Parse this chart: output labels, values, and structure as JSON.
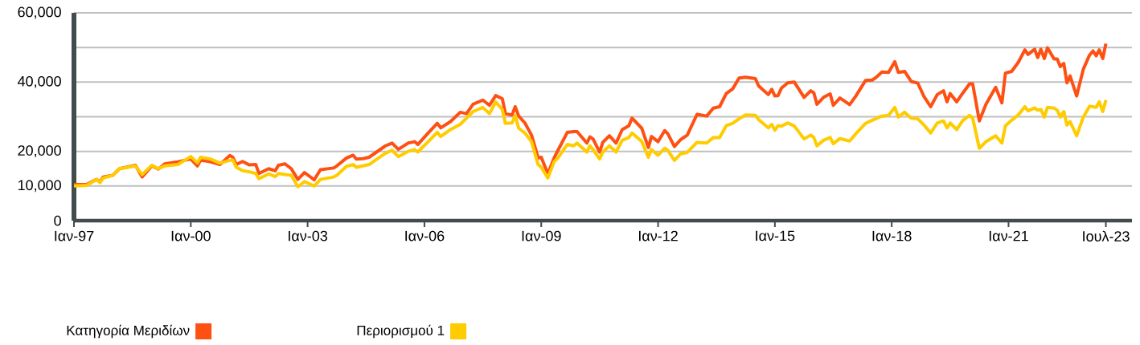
{
  "chart_data": {
    "type": "line",
    "x": [
      "1997-01",
      "1997-05",
      "1997-08",
      "1997-09",
      "1997-10",
      "1998-01",
      "1998-03",
      "1998-08",
      "1998-10",
      "1999-01",
      "1999-03",
      "1999-05",
      "1999-09",
      "2000-01",
      "2000-03",
      "2000-04",
      "2000-07",
      "2000-10",
      "2001-01",
      "2001-02",
      "2001-03",
      "2001-05",
      "2001-07",
      "2001-09",
      "2001-10",
      "2002-01",
      "2002-03",
      "2002-04",
      "2002-06",
      "2002-08",
      "2002-10",
      "2002-12",
      "2003-03",
      "2003-05",
      "2003-09",
      "2003-10",
      "2004-01",
      "2004-03",
      "2004-04",
      "2004-06",
      "2004-08",
      "2005-01",
      "2005-03",
      "2005-05",
      "2005-08",
      "2005-10",
      "2005-11",
      "2006-02",
      "2006-05",
      "2006-06",
      "2006-09",
      "2006-12",
      "2007-02",
      "2007-04",
      "2007-07",
      "2007-09",
      "2007-11",
      "2008-01",
      "2008-02",
      "2008-04",
      "2008-05",
      "2008-06",
      "2008-08",
      "2008-10",
      "2008-12",
      "2009-01",
      "2009-03",
      "2009-05",
      "2009-06",
      "2009-09",
      "2009-11",
      "2009-12",
      "2010-03",
      "2010-04",
      "2010-05",
      "2010-07",
      "2010-08",
      "2010-10",
      "2010-12",
      "2011-02",
      "2011-04",
      "2011-05",
      "2011-08",
      "2011-10",
      "2011-11",
      "2012-01",
      "2012-03",
      "2012-04",
      "2012-06",
      "2012-08",
      "2012-10",
      "2013-01",
      "2013-04",
      "2013-06",
      "2013-08",
      "2013-10",
      "2013-12",
      "2014-02",
      "2014-04",
      "2014-07",
      "2014-08",
      "2014-11",
      "2014-12",
      "2015-01",
      "2015-02",
      "2015-03",
      "2015-05",
      "2015-07",
      "2015-10",
      "2015-12",
      "2016-01",
      "2016-02",
      "2016-04",
      "2016-06",
      "2016-07",
      "2016-09",
      "2016-12",
      "2017-02",
      "2017-05",
      "2017-07",
      "2017-08",
      "2017-10",
      "2017-12",
      "2018-02",
      "2018-03",
      "2018-05",
      "2018-07",
      "2018-09",
      "2018-11",
      "2019-01",
      "2019-03",
      "2019-05",
      "2019-06",
      "2019-07",
      "2019-09",
      "2019-11",
      "2020-01",
      "2020-02",
      "2020-04",
      "2020-06",
      "2020-09",
      "2020-11",
      "2020-12",
      "2021-02",
      "2021-04",
      "2021-06",
      "2021-07",
      "2021-09",
      "2021-10",
      "2021-11",
      "2021-12",
      "2022-01",
      "2022-03",
      "2022-04",
      "2022-05",
      "2022-06",
      "2022-07",
      "2022-08",
      "2022-10",
      "2022-12",
      "2023-02",
      "2023-03",
      "2023-04",
      "2023-05",
      "2023-06",
      "2023-07"
    ],
    "series": [
      {
        "name": "Κατηγορία Μεριδίων",
        "color": "#ff5014",
        "values": [
          10400,
          10500,
          11900,
          11200,
          12600,
          13100,
          15000,
          16000,
          12600,
          15800,
          14900,
          16400,
          17000,
          17800,
          15800,
          17500,
          17000,
          16200,
          18800,
          18300,
          16200,
          17100,
          16100,
          16200,
          13600,
          15000,
          14400,
          16000,
          16400,
          15000,
          11900,
          13900,
          11800,
          14700,
          15200,
          15800,
          18100,
          18900,
          17800,
          17900,
          18300,
          21600,
          22400,
          20600,
          22400,
          22800,
          22000,
          25100,
          28100,
          26800,
          28600,
          31300,
          30900,
          33600,
          34800,
          33300,
          36100,
          35200,
          30900,
          30500,
          32900,
          30200,
          28200,
          24700,
          18100,
          18300,
          13500,
          18100,
          20100,
          25500,
          25700,
          25700,
          22400,
          24200,
          23600,
          19800,
          22600,
          24500,
          22400,
          26300,
          27400,
          29600,
          26700,
          21100,
          24300,
          22800,
          26000,
          25100,
          21400,
          23400,
          24700,
          30700,
          30200,
          32500,
          32900,
          36700,
          38100,
          41200,
          41400,
          41000,
          38900,
          36400,
          37900,
          36000,
          36100,
          38300,
          39800,
          40000,
          35600,
          37500,
          36900,
          33600,
          35600,
          36600,
          33300,
          35400,
          33500,
          36000,
          40500,
          40600,
          41200,
          42900,
          42800,
          45900,
          42800,
          43100,
          40200,
          39700,
          35800,
          32900,
          36400,
          37500,
          34300,
          36700,
          34300,
          36900,
          39500,
          39500,
          28800,
          33600,
          38500,
          34000,
          42600,
          43100,
          45700,
          49300,
          48000,
          49500,
          47100,
          49500,
          46800,
          49900,
          46700,
          46700,
          44500,
          45400,
          39800,
          41800,
          36000,
          43700,
          47800,
          49000,
          47600,
          49300,
          46800,
          51100
        ]
      },
      {
        "name": "Περιορισμού 1",
        "color": "#ffcc00",
        "values": [
          10000,
          10200,
          11900,
          11000,
          12300,
          13100,
          15000,
          15800,
          13300,
          16000,
          15000,
          15800,
          16200,
          18500,
          16700,
          18300,
          17800,
          16600,
          17400,
          17500,
          15400,
          14400,
          14100,
          13600,
          12100,
          13500,
          12700,
          13600,
          13300,
          13100,
          9800,
          11300,
          10000,
          11900,
          12600,
          13100,
          15700,
          16200,
          15400,
          15800,
          16200,
          19500,
          20300,
          18500,
          20000,
          20500,
          19800,
          22600,
          25500,
          24300,
          26300,
          27800,
          29600,
          31500,
          32700,
          30900,
          34300,
          32100,
          28100,
          28200,
          30400,
          26700,
          25300,
          22800,
          16200,
          15400,
          12300,
          17000,
          18000,
          22000,
          21600,
          22400,
          19800,
          21600,
          20500,
          17800,
          19800,
          21600,
          19800,
          23200,
          24000,
          25300,
          22900,
          18300,
          20500,
          18900,
          20900,
          20300,
          17400,
          19300,
          19700,
          22600,
          22400,
          24000,
          24000,
          27400,
          28100,
          29400,
          30500,
          30400,
          29200,
          26800,
          27800,
          26100,
          27400,
          27300,
          28200,
          27300,
          23600,
          24700,
          24000,
          21600,
          23200,
          24000,
          22200,
          23700,
          23000,
          25100,
          28100,
          29000,
          29400,
          30200,
          30400,
          32700,
          29900,
          31300,
          29600,
          29400,
          27600,
          25300,
          28200,
          28800,
          26800,
          28200,
          26300,
          29000,
          30400,
          29600,
          20900,
          22800,
          24500,
          22400,
          27400,
          29000,
          30500,
          32900,
          31700,
          32500,
          31900,
          32100,
          29900,
          32700,
          32500,
          31900,
          29900,
          31500,
          27600,
          28600,
          24500,
          29900,
          33000,
          32900,
          32700,
          34300,
          31500,
          34800
        ]
      }
    ],
    "xlim": [
      "1997-01",
      "2024-03"
    ],
    "xticks": [
      {
        "value": "1997-01",
        "label": "Ιαν-97"
      },
      {
        "value": "2000-01",
        "label": "Ιαν-00"
      },
      {
        "value": "2003-01",
        "label": "Ιαν-03"
      },
      {
        "value": "2006-01",
        "label": "Ιαν-06"
      },
      {
        "value": "2009-01",
        "label": "Ιαν-09"
      },
      {
        "value": "2012-01",
        "label": "Ιαν-12"
      },
      {
        "value": "2015-01",
        "label": "Ιαν-15"
      },
      {
        "value": "2018-01",
        "label": "Ιαν-18"
      },
      {
        "value": "2021-01",
        "label": "Ιαν-21"
      },
      {
        "value": "2023-07",
        "label": "Ιουλ-23"
      }
    ],
    "ylim": [
      0,
      60000
    ],
    "yticks": [
      0,
      {
        "value": 10000,
        "label": "10,000"
      },
      {
        "value": 20000,
        "label": "20,000"
      },
      {
        "value": 30000,
        "label": null
      },
      {
        "value": 40000,
        "label": "40,000"
      },
      {
        "value": 50000,
        "label": null
      },
      {
        "value": 60000,
        "label": "60,000"
      }
    ],
    "grid": "y",
    "legend": "bottom",
    "marker": "none",
    "line_style": "solid"
  }
}
